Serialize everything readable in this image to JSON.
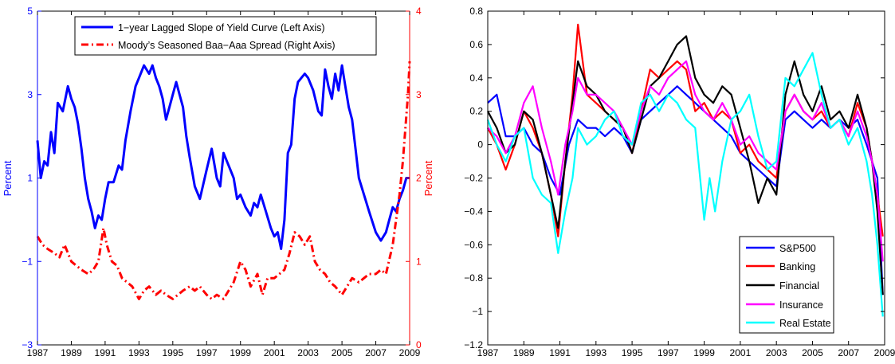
{
  "chart_data": [
    {
      "type": "line",
      "xlim": [
        1987,
        2009
      ],
      "xticks": [
        1987,
        1989,
        1991,
        1993,
        1995,
        1997,
        1999,
        2001,
        2003,
        2005,
        2007,
        2009
      ],
      "xtick_labels": [
        "1987",
        "1989",
        "1991",
        "1993",
        "1995",
        "1997",
        "1999",
        "2001",
        "2003",
        "2005",
        "2007",
        "2009"
      ],
      "ylabel_left": "Percent",
      "ylabel_right": "Percent",
      "ylim_left": [
        -3,
        5
      ],
      "yticks_left": [
        -3,
        -1,
        1,
        3,
        5
      ],
      "ytick_labels_left": [
        "−3",
        "−1",
        "1",
        "3",
        "5"
      ],
      "ylim_right": [
        0,
        4
      ],
      "yticks_right": [
        0,
        1,
        2,
        3,
        4
      ],
      "ytick_labels_right": [
        "0",
        "1",
        "2",
        "3",
        "4"
      ],
      "left_axis_color": "#0000ff",
      "right_axis_color": "#ff0000",
      "legend_position": "top",
      "series": [
        {
          "name": "1−year Lagged Slope of Yield Curve (Left Axis)",
          "axis": "left",
          "color": "#0000ff",
          "style": "solid",
          "x": [
            1987.0,
            1987.2,
            1987.4,
            1987.6,
            1987.8,
            1988.0,
            1988.2,
            1988.5,
            1988.8,
            1989.0,
            1989.2,
            1989.4,
            1989.6,
            1989.8,
            1990.0,
            1990.2,
            1990.4,
            1990.6,
            1990.8,
            1991.0,
            1991.2,
            1991.5,
            1991.8,
            1992.0,
            1992.2,
            1992.5,
            1992.8,
            1993.0,
            1993.3,
            1993.6,
            1993.8,
            1994.0,
            1994.2,
            1994.4,
            1994.6,
            1994.8,
            1995.0,
            1995.2,
            1995.4,
            1995.6,
            1995.8,
            1996.0,
            1996.3,
            1996.6,
            1997.0,
            1997.3,
            1997.6,
            1997.8,
            1998.0,
            1998.2,
            1998.4,
            1998.6,
            1998.8,
            1999.0,
            1999.3,
            1999.6,
            1999.8,
            2000.0,
            2000.2,
            2000.5,
            2000.8,
            2001.0,
            2001.2,
            2001.4,
            2001.6,
            2001.8,
            2002.0,
            2002.2,
            2002.4,
            2002.6,
            2002.8,
            2003.0,
            2003.3,
            2003.6,
            2003.8,
            2004.0,
            2004.2,
            2004.4,
            2004.6,
            2004.8,
            2005.0,
            2005.2,
            2005.4,
            2005.6,
            2005.8,
            2006.0,
            2006.3,
            2006.6,
            2007.0,
            2007.3,
            2007.6,
            2007.8,
            2008.0,
            2008.2,
            2008.4,
            2008.6,
            2008.8,
            2009.0
          ],
          "y": [
            1.9,
            1.0,
            1.4,
            1.3,
            2.1,
            1.6,
            2.8,
            2.6,
            3.2,
            2.9,
            2.7,
            2.3,
            1.7,
            1.0,
            0.5,
            0.2,
            -0.2,
            0.1,
            0.0,
            0.5,
            0.9,
            0.9,
            1.3,
            1.2,
            1.9,
            2.6,
            3.2,
            3.4,
            3.7,
            3.5,
            3.7,
            3.4,
            3.2,
            2.9,
            2.4,
            2.7,
            3.0,
            3.3,
            3.0,
            2.7,
            2.0,
            1.5,
            0.8,
            0.5,
            1.2,
            1.7,
            1.0,
            0.8,
            1.6,
            1.4,
            1.2,
            1.0,
            0.5,
            0.6,
            0.3,
            0.1,
            0.4,
            0.3,
            0.6,
            0.2,
            -0.2,
            -0.4,
            -0.3,
            -0.7,
            0.0,
            1.6,
            1.8,
            2.9,
            3.3,
            3.4,
            3.5,
            3.4,
            3.1,
            2.6,
            2.5,
            3.6,
            3.2,
            2.9,
            3.5,
            3.1,
            3.7,
            3.2,
            2.7,
            2.4,
            1.7,
            1.0,
            0.6,
            0.2,
            -0.3,
            -0.5,
            -0.3,
            0.0,
            0.3,
            0.2,
            0.5,
            0.7,
            1.0,
            1.0
          ]
        },
        {
          "name": "Moody’s Seasoned Baa−Aaa Spread (Right Axis)",
          "axis": "right",
          "color": "#ff0000",
          "style": "dash-dot",
          "x": [
            1987.0,
            1987.3,
            1987.6,
            1988.0,
            1988.3,
            1988.6,
            1989.0,
            1989.3,
            1989.6,
            1990.0,
            1990.3,
            1990.6,
            1990.9,
            1991.1,
            1991.4,
            1991.7,
            1992.0,
            1992.3,
            1992.6,
            1993.0,
            1993.3,
            1993.6,
            1994.0,
            1994.3,
            1994.6,
            1995.0,
            1995.3,
            1995.6,
            1996.0,
            1996.3,
            1996.6,
            1997.0,
            1997.3,
            1997.6,
            1998.0,
            1998.3,
            1998.6,
            1999.0,
            1999.3,
            1999.6,
            2000.0,
            2000.3,
            2000.6,
            2001.0,
            2001.3,
            2001.6,
            2001.9,
            2002.2,
            2002.5,
            2002.8,
            2003.1,
            2003.4,
            2003.7,
            2004.0,
            2004.3,
            2004.6,
            2005.0,
            2005.3,
            2005.6,
            2006.0,
            2006.3,
            2006.6,
            2007.0,
            2007.3,
            2007.6,
            2008.0,
            2008.2,
            2008.4,
            2008.6,
            2008.75,
            2008.9,
            2009.0
          ],
          "y": [
            1.3,
            1.2,
            1.15,
            1.1,
            1.05,
            1.2,
            1.0,
            0.95,
            0.9,
            0.85,
            0.9,
            1.0,
            1.4,
            1.2,
            1.0,
            0.95,
            0.8,
            0.75,
            0.7,
            0.55,
            0.65,
            0.7,
            0.6,
            0.65,
            0.6,
            0.55,
            0.6,
            0.65,
            0.7,
            0.65,
            0.7,
            0.6,
            0.55,
            0.6,
            0.55,
            0.65,
            0.75,
            1.0,
            0.9,
            0.7,
            0.85,
            0.6,
            0.8,
            0.8,
            0.85,
            0.9,
            1.1,
            1.35,
            1.3,
            1.2,
            1.3,
            1.0,
            0.9,
            0.85,
            0.75,
            0.7,
            0.6,
            0.7,
            0.8,
            0.75,
            0.8,
            0.85,
            0.85,
            0.9,
            0.85,
            1.2,
            1.5,
            1.8,
            2.2,
            2.6,
            3.0,
            3.4
          ]
        }
      ]
    },
    {
      "type": "line",
      "xlim": [
        1987,
        2009
      ],
      "xticks": [
        1987,
        1989,
        1991,
        1993,
        1995,
        1997,
        1999,
        2001,
        2003,
        2005,
        2007,
        2009
      ],
      "xtick_labels": [
        "1987",
        "1989",
        "1991",
        "1993",
        "1995",
        "1997",
        "1999",
        "2001",
        "2003",
        "2005",
        "2007",
        "2009"
      ],
      "ylim": [
        -1.2,
        0.8
      ],
      "yticks": [
        -1.2,
        -1.0,
        -0.8,
        -0.6,
        -0.4,
        -0.2,
        0,
        0.2,
        0.4,
        0.6,
        0.8
      ],
      "ytick_labels": [
        "−1.2",
        "−1",
        "−0.8",
        "−0.6",
        "−0.4",
        "−0.2",
        "0",
        "0.2",
        "0.4",
        "0.6",
        "0.8"
      ],
      "legend_position": "bottom-right",
      "series": [
        {
          "name": "S&P500",
          "color": "#0000ff",
          "x": [
            1987.0,
            1987.5,
            1988.0,
            1988.5,
            1989.0,
            1989.5,
            1990.0,
            1990.5,
            1991.0,
            1991.5,
            1992.0,
            1992.5,
            1993.0,
            1993.5,
            1994.0,
            1994.5,
            1995.0,
            1995.5,
            1996.0,
            1996.5,
            1997.0,
            1997.5,
            1998.0,
            1998.5,
            1999.0,
            1999.5,
            2000.0,
            2000.5,
            2001.0,
            2001.5,
            2002.0,
            2002.5,
            2003.0,
            2003.5,
            2004.0,
            2004.5,
            2005.0,
            2005.5,
            2006.0,
            2006.5,
            2007.0,
            2007.5,
            2008.0,
            2008.3,
            2008.6,
            2008.9
          ],
          "y": [
            0.25,
            0.3,
            0.05,
            0.05,
            0.1,
            0.0,
            -0.05,
            -0.2,
            -0.3,
            0.0,
            0.15,
            0.1,
            0.1,
            0.05,
            0.1,
            0.05,
            -0.05,
            0.15,
            0.2,
            0.25,
            0.3,
            0.35,
            0.3,
            0.25,
            0.2,
            0.15,
            0.1,
            0.05,
            -0.05,
            -0.1,
            -0.15,
            -0.2,
            -0.25,
            0.15,
            0.2,
            0.15,
            0.1,
            0.15,
            0.1,
            0.15,
            0.1,
            0.15,
            0.0,
            -0.1,
            -0.2,
            -0.9
          ]
        },
        {
          "name": "Banking",
          "color": "#ff0000",
          "x": [
            1987.0,
            1987.5,
            1988.0,
            1988.5,
            1989.0,
            1989.5,
            1990.0,
            1990.5,
            1990.9,
            1991.3,
            1991.7,
            1992.0,
            1992.5,
            1993.0,
            1993.5,
            1994.0,
            1994.5,
            1995.0,
            1995.5,
            1996.0,
            1996.5,
            1997.0,
            1997.5,
            1998.0,
            1998.5,
            1999.0,
            1999.5,
            2000.0,
            2000.5,
            2001.0,
            2001.5,
            2002.0,
            2002.5,
            2003.0,
            2003.5,
            2004.0,
            2004.5,
            2005.0,
            2005.5,
            2006.0,
            2006.5,
            2007.0,
            2007.5,
            2008.0,
            2008.3,
            2008.6,
            2008.9
          ],
          "y": [
            0.1,
            0.0,
            -0.15,
            0.0,
            0.2,
            0.1,
            -0.05,
            -0.3,
            -0.55,
            -0.1,
            0.3,
            0.72,
            0.3,
            0.25,
            0.2,
            0.15,
            0.1,
            -0.05,
            0.2,
            0.45,
            0.4,
            0.45,
            0.5,
            0.45,
            0.2,
            0.25,
            0.15,
            0.2,
            0.15,
            -0.05,
            0.0,
            -0.1,
            -0.15,
            -0.2,
            0.2,
            0.3,
            0.2,
            0.15,
            0.2,
            0.1,
            0.15,
            0.05,
            0.25,
            0.1,
            -0.1,
            -0.3,
            -0.55
          ]
        },
        {
          "name": "Financial",
          "color": "#000000",
          "x": [
            1987.0,
            1987.5,
            1988.0,
            1988.5,
            1989.0,
            1989.5,
            1990.0,
            1990.5,
            1990.9,
            1991.3,
            1991.7,
            1992.0,
            1992.5,
            1993.0,
            1993.5,
            1994.0,
            1994.5,
            1995.0,
            1995.5,
            1996.0,
            1996.5,
            1997.0,
            1997.5,
            1998.0,
            1998.5,
            1999.0,
            1999.5,
            2000.0,
            2000.5,
            2001.0,
            2001.5,
            2002.0,
            2002.5,
            2003.0,
            2003.5,
            2004.0,
            2004.5,
            2005.0,
            2005.5,
            2006.0,
            2006.5,
            2007.0,
            2007.5,
            2008.0,
            2008.3,
            2008.6,
            2008.9
          ],
          "y": [
            0.2,
            0.1,
            -0.05,
            0.0,
            0.2,
            0.15,
            -0.05,
            -0.3,
            -0.5,
            -0.1,
            0.25,
            0.5,
            0.35,
            0.3,
            0.2,
            0.15,
            0.1,
            -0.05,
            0.15,
            0.35,
            0.4,
            0.5,
            0.6,
            0.65,
            0.4,
            0.3,
            0.25,
            0.35,
            0.3,
            0.1,
            -0.1,
            -0.35,
            -0.2,
            -0.3,
            0.3,
            0.5,
            0.3,
            0.2,
            0.35,
            0.15,
            0.2,
            0.1,
            0.3,
            0.1,
            -0.1,
            -0.4,
            -0.9
          ]
        },
        {
          "name": "Insurance",
          "color": "#ff00ff",
          "x": [
            1987.0,
            1987.5,
            1988.0,
            1988.5,
            1989.0,
            1989.5,
            1990.0,
            1990.5,
            1990.9,
            1991.3,
            1991.7,
            1992.0,
            1992.5,
            1993.0,
            1993.5,
            1994.0,
            1994.5,
            1995.0,
            1995.5,
            1996.0,
            1996.5,
            1997.0,
            1997.5,
            1998.0,
            1998.5,
            1999.0,
            1999.5,
            2000.0,
            2000.5,
            2001.0,
            2001.5,
            2002.0,
            2002.5,
            2003.0,
            2003.5,
            2004.0,
            2004.5,
            2005.0,
            2005.5,
            2006.0,
            2006.5,
            2007.0,
            2007.5,
            2008.0,
            2008.3,
            2008.6,
            2008.9
          ],
          "y": [
            0.1,
            0.05,
            -0.05,
            0.05,
            0.25,
            0.35,
            0.1,
            -0.1,
            -0.3,
            0.0,
            0.2,
            0.4,
            0.3,
            0.3,
            0.25,
            0.2,
            0.1,
            0.0,
            0.2,
            0.35,
            0.3,
            0.4,
            0.45,
            0.5,
            0.3,
            0.2,
            0.15,
            0.25,
            0.15,
            0.0,
            0.05,
            -0.05,
            -0.1,
            -0.15,
            0.2,
            0.3,
            0.2,
            0.15,
            0.25,
            0.1,
            0.15,
            0.05,
            0.2,
            0.05,
            -0.1,
            -0.3,
            -0.7
          ]
        },
        {
          "name": "Real Estate",
          "color": "#00ffff",
          "x": [
            1987.0,
            1987.5,
            1988.0,
            1988.5,
            1989.0,
            1989.5,
            1990.0,
            1990.5,
            1990.9,
            1991.3,
            1991.7,
            1992.0,
            1992.5,
            1993.0,
            1993.5,
            1994.0,
            1994.5,
            1995.0,
            1995.5,
            1996.0,
            1996.5,
            1997.0,
            1997.5,
            1998.0,
            1998.5,
            1999.0,
            1999.3,
            1999.6,
            2000.0,
            2000.5,
            2001.0,
            2001.5,
            2002.0,
            2002.5,
            2003.0,
            2003.5,
            2004.0,
            2004.5,
            2005.0,
            2005.5,
            2006.0,
            2006.5,
            2007.0,
            2007.5,
            2008.0,
            2008.3,
            2008.6,
            2008.9
          ],
          "y": [
            0.15,
            0.0,
            -0.1,
            0.05,
            0.1,
            -0.2,
            -0.3,
            -0.35,
            -0.65,
            -0.4,
            -0.2,
            0.1,
            0.0,
            0.05,
            0.15,
            0.2,
            0.05,
            0.0,
            0.25,
            0.3,
            0.2,
            0.3,
            0.25,
            0.15,
            0.1,
            -0.45,
            -0.2,
            -0.4,
            -0.1,
            0.15,
            0.2,
            0.3,
            0.05,
            -0.15,
            -0.1,
            0.4,
            0.35,
            0.45,
            0.55,
            0.3,
            0.1,
            0.15,
            0.0,
            0.1,
            -0.1,
            -0.3,
            -0.6,
            -1.03
          ]
        }
      ]
    }
  ]
}
